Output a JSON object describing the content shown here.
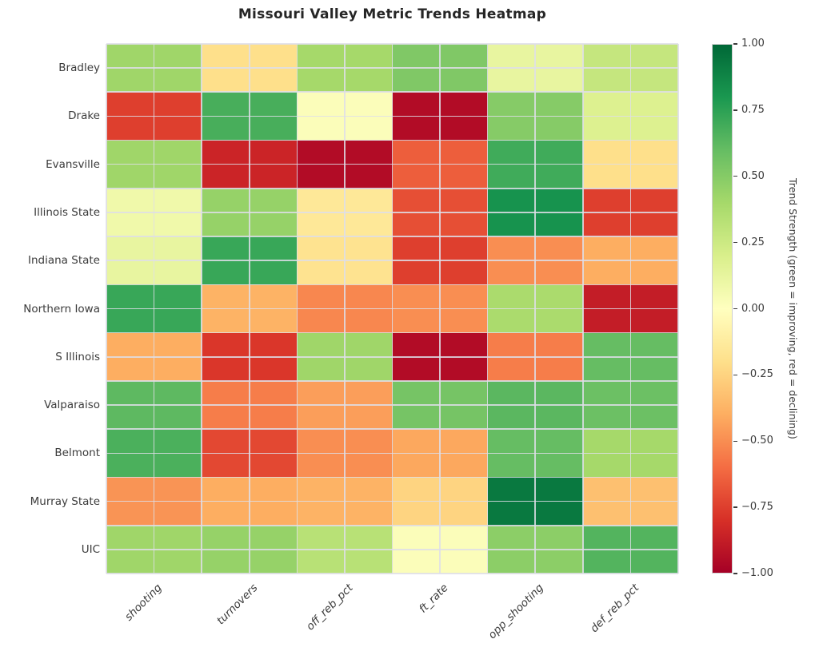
{
  "title": "Missouri Valley Metric Trends Heatmap",
  "chart_data": {
    "type": "heatmap",
    "title": "Missouri Valley Metric Trends Heatmap",
    "x_categories": [
      "shooting",
      "turnovers",
      "off_reb_pct",
      "ft_rate",
      "opp_shooting",
      "def_reb_pct"
    ],
    "y_categories": [
      "Bradley",
      "Drake",
      "Evansville",
      "Illinois State",
      "Indiana State",
      "Northern Iowa",
      "S Illinois",
      "Valparaiso",
      "Belmont",
      "Murray State",
      "UIC"
    ],
    "values": [
      [
        0.42,
        -0.2,
        0.4,
        0.52,
        0.12,
        0.28
      ],
      [
        -0.75,
        0.68,
        0.02,
        -0.95,
        0.5,
        0.18
      ],
      [
        0.42,
        -0.85,
        -0.95,
        -0.65,
        0.7,
        -0.2
      ],
      [
        0.08,
        0.45,
        -0.15,
        -0.7,
        0.82,
        -0.75
      ],
      [
        0.12,
        0.72,
        -0.18,
        -0.75,
        -0.5,
        -0.4
      ],
      [
        0.72,
        -0.38,
        -0.52,
        -0.5,
        0.38,
        -0.88
      ],
      [
        -0.4,
        -0.78,
        0.42,
        -0.95,
        -0.55,
        0.6
      ],
      [
        0.62,
        -0.55,
        -0.45,
        0.55,
        0.63,
        0.58
      ],
      [
        0.67,
        -0.72,
        -0.5,
        -0.42,
        0.6,
        0.4
      ],
      [
        -0.48,
        -0.4,
        -0.38,
        -0.25,
        0.93,
        -0.33
      ],
      [
        0.42,
        0.45,
        0.33,
        0.02,
        0.48,
        0.65
      ]
    ],
    "vmin": -1.0,
    "vmax": 1.0,
    "colormap": "RdYlGn",
    "grid": true,
    "colorbar": {
      "label": "Trend Strength (green = improving, red = declining)",
      "tick_values": [
        1.0,
        0.75,
        0.5,
        0.25,
        0.0,
        -0.25,
        -0.5,
        -0.75,
        -1.0
      ],
      "tick_labels": [
        "1.00",
        "0.75",
        "0.50",
        "0.25",
        "0.00",
        "−0.25",
        "−0.50",
        "−0.75",
        "−1.00"
      ],
      "position": "right"
    }
  },
  "colors": {
    "cmap_stops": [
      {
        "v": -1.0,
        "c": "#a50026"
      },
      {
        "v": -0.8,
        "c": "#d73027"
      },
      {
        "v": -0.6,
        "c": "#f46d43"
      },
      {
        "v": -0.4,
        "c": "#fdae61"
      },
      {
        "v": -0.2,
        "c": "#fee08b"
      },
      {
        "v": 0.0,
        "c": "#ffffbf"
      },
      {
        "v": 0.2,
        "c": "#d9ef8b"
      },
      {
        "v": 0.4,
        "c": "#a6d96a"
      },
      {
        "v": 0.6,
        "c": "#66bd63"
      },
      {
        "v": 0.8,
        "c": "#1a9850"
      },
      {
        "v": 1.0,
        "c": "#006837"
      }
    ],
    "background": "#ffffff",
    "grid_line": "#dededf",
    "text": "#3b3b3b"
  }
}
